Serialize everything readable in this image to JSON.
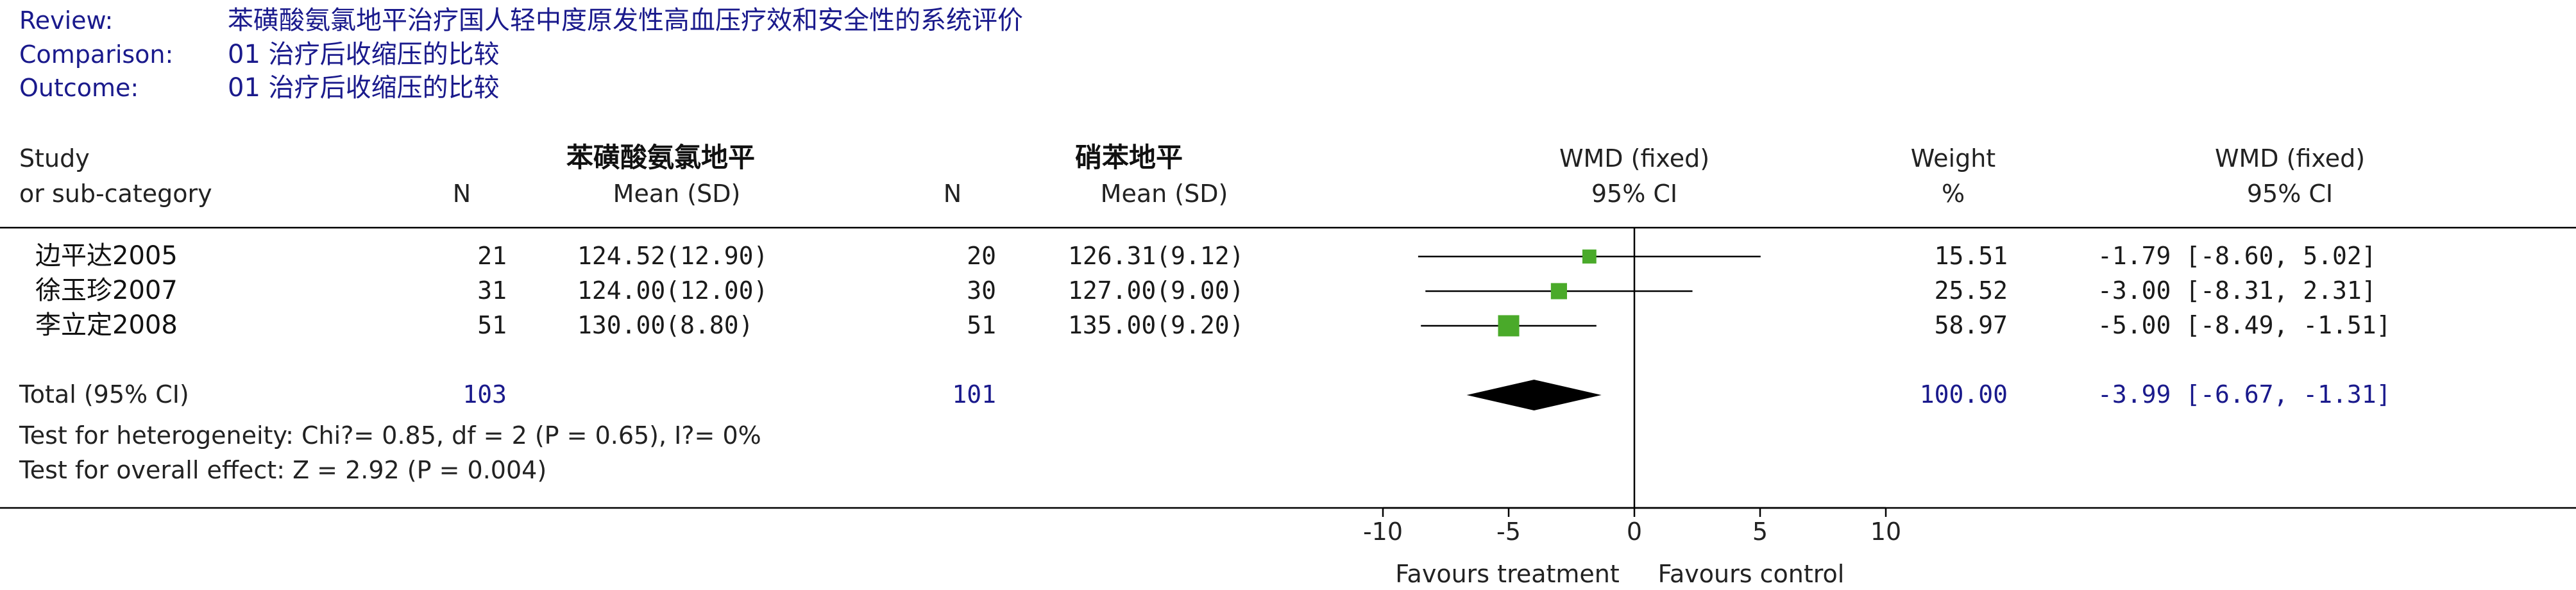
{
  "header": {
    "review_label": "Review:",
    "review_value": "苯磺酸氨氯地平治疗国人轻中度原发性高血压疗效和安全性的系统评价",
    "comparison_label": "Comparison:",
    "comparison_value": "01 治疗后收缩压的比较",
    "outcome_label": "Outcome:",
    "outcome_value": "01 治疗后收缩压的比较"
  },
  "columns": {
    "study_1": "Study",
    "study_2": "or sub-category",
    "treatment_group": "苯磺酸氨氯地平",
    "control_group": "硝苯地平",
    "n": "N",
    "mean_sd": "Mean (SD)",
    "wmd_plot_1": "WMD (fixed)",
    "wmd_plot_2": "95% CI",
    "weight_1": "Weight",
    "weight_2": "%",
    "wmd_text_1": "WMD (fixed)",
    "wmd_text_2": "95% CI"
  },
  "colors": {
    "header_text": "#1a1a8c",
    "mono_text": "#1a1a1a",
    "total_text": "#1a1a8c",
    "box_fill": "#4aaa2a",
    "diamond": "#000000"
  },
  "chart_data": {
    "type": "forest",
    "xlim": [
      -10,
      10
    ],
    "x_ticks": [
      "-10",
      "-5",
      "0",
      "5",
      "10"
    ],
    "x_tick_values": [
      -10,
      -5,
      0,
      5,
      10
    ],
    "left_label": "Favours treatment",
    "right_label": "Favours control",
    "studies": [
      {
        "name": "边平达2005",
        "n1": "21",
        "ms1": "124.52(12.90)",
        "n2": "20",
        "ms2": "126.31(9.12)",
        "weight": "15.51",
        "ci_text": "-1.79 [-8.60, 5.02]",
        "est": -1.79,
        "lo": -8.6,
        "hi": 5.02,
        "w": 15.51
      },
      {
        "name": "徐玉珍2007",
        "n1": "31",
        "ms1": "124.00(12.00)",
        "n2": "30",
        "ms2": "127.00(9.00)",
        "weight": "25.52",
        "ci_text": "-3.00 [-8.31, 2.31]",
        "est": -3.0,
        "lo": -8.31,
        "hi": 2.31,
        "w": 25.52
      },
      {
        "name": "李立定2008",
        "n1": "51",
        "ms1": "130.00(8.80)",
        "n2": "51",
        "ms2": "135.00(9.20)",
        "weight": "58.97",
        "ci_text": "-5.00 [-8.49, -1.51]",
        "est": -5.0,
        "lo": -8.49,
        "hi": -1.51,
        "w": 58.97
      }
    ],
    "total": {
      "label": "Total (95% CI)",
      "n1": "103",
      "n2": "101",
      "weight": "100.00",
      "ci_text": "-3.99 [-6.67, -1.31]",
      "est": -3.99,
      "lo": -6.67,
      "hi": -1.31
    },
    "heterogeneity": "Test for heterogeneity: Chi?= 0.85, df = 2 (P = 0.65), I?= 0%",
    "overall_effect": "Test for overall effect: Z = 2.92 (P = 0.004)"
  }
}
